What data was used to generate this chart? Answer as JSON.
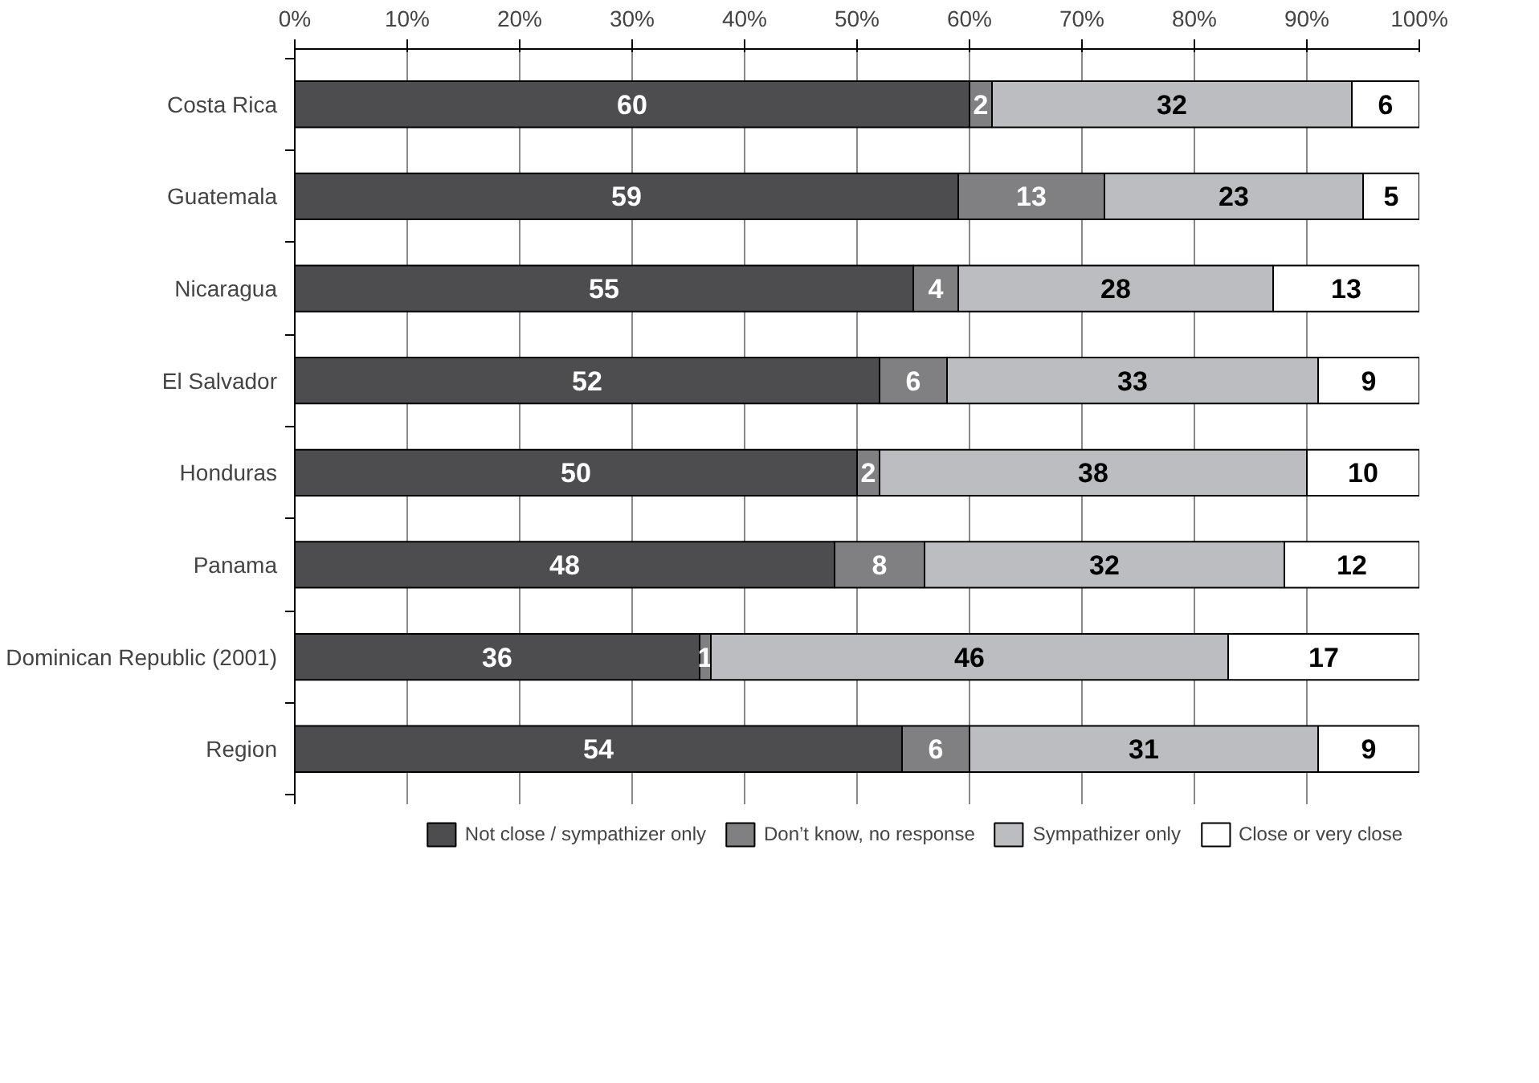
{
  "chart_data": {
    "type": "bar",
    "orientation": "horizontal",
    "stacked": true,
    "data_labels": true,
    "categories": [
      "Costa Rica",
      "Guatemala",
      "Nicaragua",
      "El Salvador",
      "Honduras",
      "Panama",
      "Dominican Republic (2001)",
      "Region"
    ],
    "series": [
      {
        "name": "Not close / sympathizer only",
        "color": "#4d4d4f",
        "values": [
          60,
          59,
          55,
          52,
          50,
          48,
          36,
          54
        ]
      },
      {
        "name": "Don’t know, no response",
        "color": "#808083",
        "values": [
          2,
          13,
          4,
          6,
          2,
          8,
          1,
          6
        ]
      },
      {
        "name": "Sympathizer only",
        "color": "#bcbdc0",
        "values": [
          32,
          23,
          28,
          33,
          38,
          32,
          46,
          31
        ]
      },
      {
        "name": "Close or very close",
        "color": "#ffffff",
        "values": [
          6,
          5,
          13,
          9,
          10,
          12,
          17,
          9
        ]
      }
    ],
    "xlim": [
      0,
      100
    ],
    "xticks": [
      {
        "value": 0,
        "label": "0%"
      },
      {
        "value": 10,
        "label": "10%"
      },
      {
        "value": 20,
        "label": "20%"
      },
      {
        "value": 30,
        "label": "30%"
      },
      {
        "value": 40,
        "label": "40%"
      },
      {
        "value": 50,
        "label": "50%"
      },
      {
        "value": 60,
        "label": "60%"
      },
      {
        "value": 70,
        "label": "70%"
      },
      {
        "value": 80,
        "label": "80%"
      },
      {
        "value": 90,
        "label": "90%"
      },
      {
        "value": 100,
        "label": "100%"
      }
    ],
    "grid": "x",
    "legend": "bottom"
  }
}
